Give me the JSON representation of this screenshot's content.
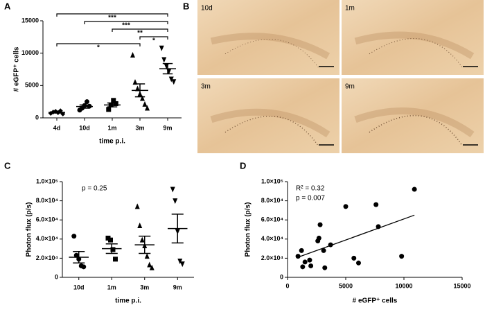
{
  "chart_data": [
    {
      "type": "dot",
      "panel": "A",
      "ylabel": "# eGFP⁺ cells",
      "xlabel": "time p.i.",
      "categories": [
        "4d",
        "10d",
        "1m",
        "3m",
        "9m"
      ],
      "markers": [
        "diamond",
        "circle",
        "square",
        "triangle",
        "inverted-triangle"
      ],
      "points": [
        [
          700,
          900,
          1000,
          800,
          1100,
          600
        ],
        [
          1200,
          1500,
          1900,
          2500,
          1800
        ],
        [
          1300,
          2000,
          2700,
          2200
        ],
        [
          9700,
          5500,
          4500,
          3700,
          3000,
          2100,
          1500
        ],
        [
          10800,
          9000,
          8000,
          7200,
          6000,
          5600
        ]
      ],
      "means": [
        850,
        1750,
        2000,
        4250,
        7600
      ],
      "sem": [
        100,
        250,
        300,
        1000,
        800
      ],
      "ylim": [
        0,
        15000
      ],
      "yticks": [
        0,
        5000,
        10000,
        15000
      ],
      "comparisons": [
        {
          "from": "4d",
          "to": "9m",
          "label": "***"
        },
        {
          "from": "10d",
          "to": "9m",
          "label": "***"
        },
        {
          "from": "1m",
          "to": "9m",
          "label": "**"
        },
        {
          "from": "3m",
          "to": "9m",
          "label": "*"
        },
        {
          "from": "4d",
          "to": "3m",
          "label": "*"
        }
      ],
      "color": "#000000"
    },
    {
      "type": "dot",
      "panel": "C",
      "ylabel": "Photon flux (p/s)",
      "xlabel": "time p.i.",
      "categories": [
        "10d",
        "1m",
        "3m",
        "9m"
      ],
      "markers": [
        "circle",
        "square",
        "triangle",
        "inverted-triangle"
      ],
      "points": [
        [
          43000,
          23000,
          19000,
          12000,
          11000
        ],
        [
          41000,
          39000,
          29000,
          19000
        ],
        [
          74000,
          54000,
          39000,
          33000,
          22000,
          13000,
          10000
        ],
        [
          92000,
          80000,
          48000,
          17000,
          14000
        ]
      ],
      "means": [
        21000,
        30000,
        34000,
        51000
      ],
      "sem": [
        6000,
        5000,
        9000,
        15000
      ],
      "ylim": [
        0,
        100000
      ],
      "yticks": [
        0,
        {
          "value": 20000,
          "label": "2.0×10⁴"
        },
        {
          "value": 40000,
          "label": "4.0×10⁴"
        },
        {
          "value": 60000,
          "label": "6.0×10⁴"
        },
        {
          "value": 80000,
          "label": "8.0×10⁴"
        },
        {
          "value": 100000,
          "label": "1.0×10⁵"
        }
      ],
      "annotations": [
        "p = 0.25"
      ],
      "color": "#000000"
    },
    {
      "type": "scatter",
      "panel": "D",
      "ylabel": "Photon flux (p/s)",
      "xlabel": "# eGFP⁺ cells",
      "x": [
        900,
        1200,
        1300,
        1500,
        1900,
        2000,
        2600,
        2700,
        2800,
        3100,
        3200,
        3700,
        5000,
        5700,
        6100,
        7600,
        7800,
        9800,
        10900
      ],
      "y": [
        22000,
        28000,
        11000,
        16000,
        18000,
        12000,
        38000,
        41000,
        55000,
        28000,
        10000,
        34000,
        74000,
        20000,
        15000,
        76000,
        53000,
        22000,
        92000
      ],
      "fit": {
        "x": [
          900,
          10900
        ],
        "y": [
          21000,
          65000
        ]
      },
      "xlim": [
        0,
        15000
      ],
      "xticks": [
        0,
        5000,
        10000,
        15000
      ],
      "ylim": [
        0,
        100000
      ],
      "yticks": [
        0,
        {
          "value": 20000,
          "label": "2.0×10⁴"
        },
        {
          "value": 40000,
          "label": "4.0×10⁴"
        },
        {
          "value": 60000,
          "label": "6.0×10⁴"
        },
        {
          "value": 80000,
          "label": "8.0×10⁴"
        },
        {
          "value": 100000,
          "label": "1.0×10⁵"
        }
      ],
      "annotations": [
        "R² = 0.32",
        "p = 0.007"
      ],
      "color": "#000000"
    }
  ],
  "micrographs": {
    "panel": "B",
    "labels": [
      "10d",
      "1m",
      "3m",
      "9m"
    ]
  }
}
